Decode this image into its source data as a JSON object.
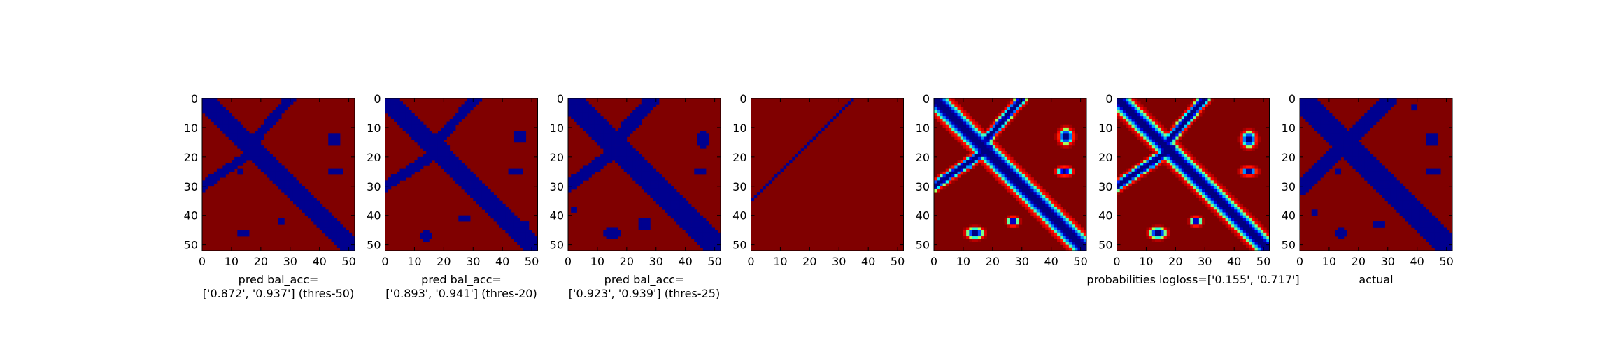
{
  "chart_data": [
    {
      "type": "heatmap",
      "colormap": "jet",
      "binary": true,
      "x": [
        0,
        10,
        20,
        30,
        40,
        50
      ],
      "y": [
        0,
        10,
        20,
        30,
        40,
        50
      ],
      "xlim": [
        0,
        52
      ],
      "ylim": [
        52,
        0
      ],
      "caption": [
        "pred bal_acc=",
        "['0.872', '0.937'] (thres-50)"
      ],
      "low_regions": {
        "diagonal": {
          "from": [
            0,
            0
          ],
          "to": [
            52,
            52
          ],
          "half_width": 3.2
        },
        "segments": [
          {
            "from": [
              30,
              0
            ],
            "to": [
              18,
              14
            ],
            "half_width": 1.6
          },
          {
            "from": [
              19,
              17
            ],
            "to": [
              0,
              30
            ],
            "half_width": 1.6
          }
        ],
        "blobs": [
          {
            "x": 45,
            "y": 14,
            "rx": 2.2,
            "ry": 2.5
          },
          {
            "x": 45.5,
            "y": 25,
            "rx": 2.5,
            "ry": 1.3
          },
          {
            "x": 14,
            "y": 46,
            "rx": 2.5,
            "ry": 1.5
          },
          {
            "x": 27,
            "y": 42,
            "rx": 1.6,
            "ry": 1.2
          },
          {
            "x": 13,
            "y": 25,
            "rx": 1.4,
            "ry": 0.8
          }
        ]
      }
    },
    {
      "type": "heatmap",
      "colormap": "jet",
      "binary": true,
      "x": [
        0,
        10,
        20,
        30,
        40,
        50
      ],
      "y": [
        0,
        10,
        20,
        30,
        40,
        50
      ],
      "xlim": [
        0,
        52
      ],
      "ylim": [
        52,
        0
      ],
      "caption": [
        "pred bal_acc=",
        "['0.893', '0.941'] (thres-20)"
      ],
      "low_regions": {
        "diagonal": {
          "from": [
            0,
            0
          ],
          "to": [
            52,
            52
          ],
          "half_width": 3.4
        },
        "segments": [
          {
            "from": [
              31,
              0
            ],
            "to": [
              18,
              14
            ],
            "half_width": 1.7
          },
          {
            "from": [
              20,
              17
            ],
            "to": [
              0,
              30
            ],
            "half_width": 1.7
          }
        ],
        "blobs": [
          {
            "x": 46,
            "y": 13,
            "rx": 2.2,
            "ry": 2.5
          },
          {
            "x": 44.5,
            "y": 25,
            "rx": 2.6,
            "ry": 1.4
          },
          {
            "x": 14,
            "y": 47,
            "rx": 2.5,
            "ry": 1.6
          },
          {
            "x": 27,
            "y": 41,
            "rx": 1.7,
            "ry": 1.2
          },
          {
            "x": 12,
            "y": 23,
            "rx": 1.2,
            "ry": 0.8
          },
          {
            "x": 48,
            "y": 43,
            "rx": 1.5,
            "ry": 1.2
          }
        ]
      }
    },
    {
      "type": "heatmap",
      "colormap": "jet",
      "binary": true,
      "x": [
        0,
        10,
        20,
        30,
        40,
        50
      ],
      "y": [
        0,
        10,
        20,
        30,
        40,
        50
      ],
      "xlim": [
        0,
        52
      ],
      "ylim": [
        52,
        0
      ],
      "caption": [
        "pred bal_acc=",
        "['0.923', '0.939'] (thres-25)"
      ],
      "low_regions": {
        "diagonal": {
          "from": [
            0,
            0
          ],
          "to": [
            52,
            52
          ],
          "half_width": 3.8
        },
        "segments": [
          {
            "from": [
              29,
              0
            ],
            "to": [
              14,
              17
            ],
            "half_width": 2.3
          },
          {
            "from": [
              16,
              18
            ],
            "to": [
              0,
              30
            ],
            "half_width": 2.0
          }
        ],
        "blobs": [
          {
            "x": 46,
            "y": 14,
            "rx": 2.5,
            "ry": 2.8
          },
          {
            "x": 45,
            "y": 25,
            "rx": 2.6,
            "ry": 1.4
          },
          {
            "x": 15,
            "y": 46,
            "rx": 2.8,
            "ry": 1.8
          },
          {
            "x": 26,
            "y": 43,
            "rx": 2.2,
            "ry": 2.2
          },
          {
            "x": 2,
            "y": 38,
            "rx": 1.5,
            "ry": 1.0
          },
          {
            "x": 38,
            "y": 3,
            "rx": 0.7,
            "ry": 0.7
          }
        ]
      }
    },
    {
      "type": "heatmap",
      "colormap": "jet",
      "binary": true,
      "x": [
        0,
        10,
        20,
        30,
        40,
        50
      ],
      "y": [
        0,
        10,
        20,
        30,
        40,
        50
      ],
      "xlim": [
        0,
        52
      ],
      "ylim": [
        52,
        0
      ],
      "caption": [],
      "low_regions": {
        "diagonal": null,
        "segments": [
          {
            "from": [
              35,
              0
            ],
            "to": [
              0,
              35
            ],
            "half_width": 0.45
          }
        ],
        "blobs": []
      }
    },
    {
      "type": "heatmap",
      "colormap": "jet",
      "binary": false,
      "x": [
        0,
        10,
        20,
        30,
        40,
        50
      ],
      "y": [
        0,
        10,
        20,
        30,
        40,
        50
      ],
      "xlim": [
        0,
        52
      ],
      "ylim": [
        52,
        0
      ],
      "caption": [],
      "low_regions": {
        "diagonal": {
          "from": [
            0,
            0
          ],
          "to": [
            52,
            52
          ],
          "half_width": 3.2
        },
        "segments": [
          {
            "from": [
              30,
              0
            ],
            "to": [
              18,
              14
            ],
            "half_width": 1.6
          },
          {
            "from": [
              19,
              17
            ],
            "to": [
              0,
              30
            ],
            "half_width": 1.6
          }
        ],
        "blobs": [
          {
            "x": 45,
            "y": 13,
            "rx": 2.4,
            "ry": 2.6
          },
          {
            "x": 44.5,
            "y": 25,
            "rx": 2.6,
            "ry": 1.4
          },
          {
            "x": 14,
            "y": 46,
            "rx": 2.8,
            "ry": 1.8
          },
          {
            "x": 27,
            "y": 42,
            "rx": 1.8,
            "ry": 1.4
          },
          {
            "x": 12,
            "y": 23,
            "rx": 1.2,
            "ry": 0.9
          }
        ]
      }
    },
    {
      "type": "heatmap",
      "colormap": "jet",
      "binary": false,
      "x": [
        0,
        10,
        20,
        30,
        40,
        50
      ],
      "y": [
        0,
        10,
        20,
        30,
        40,
        50
      ],
      "xlim": [
        0,
        52
      ],
      "ylim": [
        52,
        0
      ],
      "caption": [
        "probabilities logloss=['0.155', '0.717']"
      ],
      "low_regions": {
        "diagonal": {
          "from": [
            0,
            0
          ],
          "to": [
            52,
            52
          ],
          "half_width": 3.0
        },
        "segments": [
          {
            "from": [
              30,
              0
            ],
            "to": [
              18,
              14
            ],
            "half_width": 1.7
          },
          {
            "from": [
              19,
              17
            ],
            "to": [
              0,
              30
            ],
            "half_width": 1.7
          }
        ],
        "blobs": [
          {
            "x": 45,
            "y": 14,
            "rx": 2.4,
            "ry": 2.6
          },
          {
            "x": 45,
            "y": 25,
            "rx": 2.6,
            "ry": 1.4
          },
          {
            "x": 14,
            "y": 46,
            "rx": 2.8,
            "ry": 1.8
          },
          {
            "x": 27,
            "y": 42,
            "rx": 1.8,
            "ry": 1.4
          },
          {
            "x": 12,
            "y": 23,
            "rx": 1.2,
            "ry": 0.9
          }
        ]
      }
    },
    {
      "type": "heatmap",
      "colormap": "jet",
      "binary": true,
      "x": [
        0,
        10,
        20,
        30,
        40,
        50
      ],
      "y": [
        0,
        10,
        20,
        30,
        40,
        50
      ],
      "xlim": [
        0,
        52
      ],
      "ylim": [
        52,
        0
      ],
      "caption": [
        "actual"
      ],
      "low_regions": {
        "diagonal": {
          "from": [
            0,
            0
          ],
          "to": [
            52,
            52
          ],
          "half_width": 3.6
        },
        "segments": [
          {
            "from": [
              31,
              0
            ],
            "to": [
              0,
              31
            ],
            "half_width": 2.2
          }
        ],
        "blobs": [
          {
            "x": 39,
            "y": 3,
            "rx": 1.6,
            "ry": 1.2
          },
          {
            "x": 45,
            "y": 14,
            "rx": 2.4,
            "ry": 2.5
          },
          {
            "x": 45.5,
            "y": 25,
            "rx": 2.5,
            "ry": 1.3
          },
          {
            "x": 14,
            "y": 46,
            "rx": 2.6,
            "ry": 1.6
          },
          {
            "x": 27,
            "y": 43,
            "rx": 1.8,
            "ry": 1.4
          },
          {
            "x": 5,
            "y": 39,
            "rx": 1.6,
            "ry": 1.4
          },
          {
            "x": 13,
            "y": 25,
            "rx": 1.3,
            "ry": 0.8
          }
        ]
      }
    }
  ],
  "colors": {
    "high": "#800000",
    "low": "#00008f",
    "axis": "#000000",
    "background": "#ffffff"
  }
}
